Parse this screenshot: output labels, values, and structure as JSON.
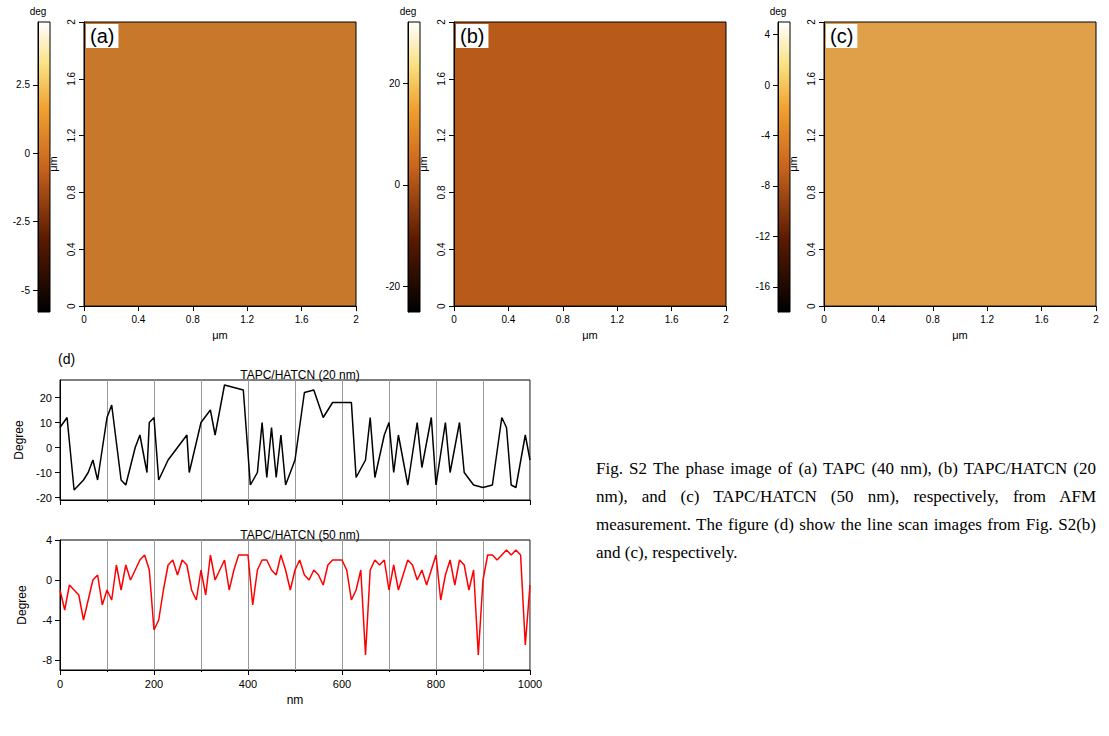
{
  "chart_data": [
    {
      "type": "image",
      "label": "(a)",
      "x_label": "μm",
      "y_label": "μm",
      "xlim": [
        0,
        2
      ],
      "xticks": [
        0,
        0.4,
        0.8,
        1.2,
        1.6,
        2
      ],
      "ylim": [
        0,
        2
      ],
      "yticks": [
        0,
        0.4,
        0.8,
        1.2,
        1.6,
        2
      ],
      "colorbar": {
        "title": "deg",
        "range": [
          -5.8,
          4.8
        ],
        "ticks": [
          -5,
          -2.5,
          0,
          2.5
        ]
      }
    },
    {
      "type": "image",
      "label": "(b)",
      "x_label": "μm",
      "y_label": "μm",
      "xlim": [
        0,
        2
      ],
      "xticks": [
        0,
        0.4,
        0.8,
        1.2,
        1.6,
        2
      ],
      "ylim": [
        0,
        2
      ],
      "yticks": [
        0,
        0.4,
        0.8,
        1.2,
        1.6,
        2
      ],
      "colorbar": {
        "title": "deg",
        "range": [
          -25,
          32
        ],
        "ticks": [
          -20,
          0,
          20
        ]
      }
    },
    {
      "type": "image",
      "label": "(c)",
      "x_label": "μm",
      "y_label": "μm",
      "xlim": [
        0,
        2
      ],
      "xticks": [
        0,
        0.4,
        0.8,
        1.2,
        1.6,
        2
      ],
      "ylim": [
        0,
        2
      ],
      "yticks": [
        0,
        0.4,
        0.8,
        1.2,
        1.6,
        2
      ],
      "colorbar": {
        "title": "deg",
        "range": [
          -18,
          5
        ],
        "ticks": [
          -16,
          -12,
          -8,
          -4,
          0,
          4
        ]
      }
    },
    {
      "type": "line",
      "label": "(d)",
      "title": "TAPC/HATCN (20 nm)",
      "y_label": "Degree",
      "color": "#000000",
      "x": [
        0,
        15,
        30,
        50,
        60,
        70,
        80,
        100,
        110,
        130,
        140,
        160,
        170,
        185,
        190,
        200,
        210,
        230,
        250,
        270,
        275,
        300,
        320,
        330,
        350,
        370,
        390,
        405,
        420,
        430,
        440,
        450,
        460,
        470,
        480,
        500,
        520,
        540,
        560,
        580,
        600,
        620,
        630,
        650,
        660,
        670,
        690,
        700,
        710,
        720,
        740,
        760,
        770,
        790,
        800,
        820,
        830,
        850,
        860,
        880,
        900,
        920,
        940,
        950,
        960,
        970,
        990,
        1000
      ],
      "values": [
        8,
        12,
        -17,
        -13,
        -10,
        -5,
        -13,
        12,
        17,
        -13,
        -15,
        0,
        5,
        -10,
        10,
        12,
        -13,
        -5,
        0,
        5,
        -10,
        10,
        15,
        5,
        25,
        24,
        23,
        -15,
        -10,
        10,
        -12,
        8,
        -12,
        5,
        -15,
        -5,
        22,
        23,
        12,
        18,
        18,
        18,
        -12,
        -5,
        12,
        -12,
        5,
        10,
        -10,
        5,
        -15,
        10,
        -8,
        12,
        -15,
        10,
        -10,
        10,
        -10,
        -15,
        -16,
        -15,
        12,
        8,
        -15,
        -16,
        5,
        -5
      ],
      "xlim": [
        0,
        1000
      ],
      "xticks": [
        0,
        200,
        400,
        600,
        800,
        1000
      ],
      "ylim": [
        -21,
        27
      ],
      "yticks": [
        -20,
        -10,
        0,
        10,
        20
      ],
      "grid": true,
      "tick_labels": "y"
    },
    {
      "type": "line",
      "title": "TAPC/HATCN (50 nm)",
      "x_label": "nm",
      "y_label": "Degree",
      "color": "#ff0000",
      "x": [
        0,
        10,
        20,
        30,
        40,
        50,
        60,
        70,
        80,
        90,
        100,
        110,
        120,
        130,
        140,
        150,
        160,
        170,
        180,
        190,
        200,
        210,
        220,
        230,
        240,
        250,
        260,
        270,
        280,
        290,
        300,
        310,
        320,
        330,
        340,
        350,
        360,
        370,
        380,
        390,
        400,
        410,
        420,
        430,
        440,
        450,
        460,
        470,
        480,
        490,
        500,
        510,
        520,
        530,
        540,
        550,
        560,
        570,
        580,
        590,
        600,
        610,
        620,
        630,
        640,
        650,
        660,
        670,
        680,
        690,
        700,
        710,
        720,
        730,
        740,
        750,
        760,
        770,
        780,
        790,
        800,
        810,
        820,
        830,
        840,
        850,
        860,
        870,
        880,
        890,
        900,
        910,
        920,
        930,
        940,
        950,
        960,
        970,
        980,
        990,
        1000
      ],
      "values": [
        -1,
        -3,
        -0.5,
        -1,
        -1.5,
        -4,
        -2,
        0,
        0.5,
        -2.5,
        -1,
        -2,
        1.5,
        -1,
        1.5,
        0,
        1,
        2,
        2.5,
        1,
        -5,
        -4,
        -1,
        1.5,
        2,
        0.5,
        2,
        1.5,
        -1,
        -2,
        1,
        -1.5,
        2.5,
        0,
        1,
        2,
        -1,
        1,
        2.5,
        2.5,
        2.5,
        -2.5,
        1,
        2,
        2,
        1,
        0.5,
        2.5,
        1,
        -1,
        1,
        2,
        0.5,
        0,
        1,
        0.5,
        -0.5,
        1.5,
        2,
        2,
        2,
        1,
        -2,
        -1,
        1,
        -7.5,
        1,
        2,
        1.5,
        2,
        -1,
        1.5,
        -1,
        0.5,
        2,
        1.5,
        0,
        1,
        -0.5,
        1,
        2.5,
        -2,
        0.5,
        2,
        -0.5,
        2,
        1.5,
        -1,
        1,
        -7.5,
        0,
        2.5,
        2.5,
        2,
        2.5,
        3,
        2.5,
        3,
        2.5,
        -6.5,
        -0.5
      ],
      "xlim": [
        0,
        1000
      ],
      "xticks": [
        0,
        200,
        400,
        600,
        800,
        1000
      ],
      "ylim": [
        -9,
        4
      ],
      "yticks": [
        -8,
        -4,
        0,
        4
      ],
      "grid": true
    }
  ],
  "caption": "Fig. S2 The phase image of (a) TAPC (40 nm), (b) TAPC/HATCN (20 nm), and (c) TAPC/HATCN (50 nm), respectively, from AFM measurement. The figure (d) show the line scan images from Fig. S2(b) and (c), respectively."
}
